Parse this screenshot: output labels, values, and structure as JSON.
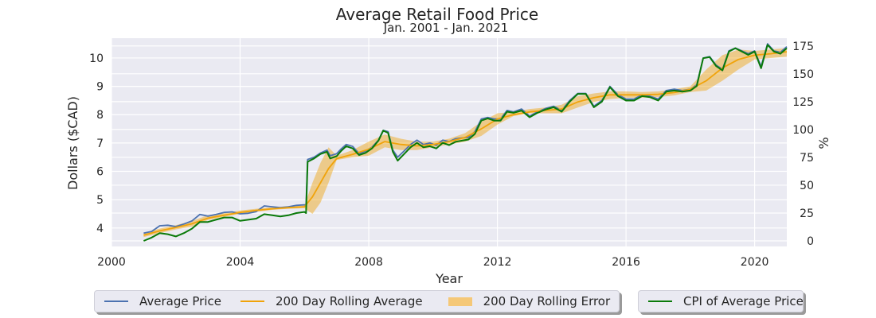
{
  "chart_data": {
    "type": "line",
    "title": "Average Retail Food Price",
    "subtitle": "Jan. 2001 - Jan. 2021",
    "xlabel": "Year",
    "ylabel": "Dollars ($CAD)",
    "y2label": "%",
    "xlim": [
      2000,
      2021
    ],
    "ylim": [
      3.35,
      10.7
    ],
    "y2lim": [
      -5,
      182
    ],
    "x_ticks": [
      2000,
      2004,
      2008,
      2012,
      2016,
      2020
    ],
    "y_ticks": [
      4,
      5,
      6,
      7,
      8,
      9,
      10
    ],
    "y2_ticks": [
      0,
      25,
      50,
      75,
      100,
      125,
      150,
      175
    ],
    "grid": true,
    "series": [
      {
        "name": "Average Price",
        "axis": "left",
        "color": "#4c72b0",
        "points": [
          [
            2001.0,
            3.82
          ],
          [
            2001.25,
            3.88
          ],
          [
            2001.5,
            4.08
          ],
          [
            2001.75,
            4.1
          ],
          [
            2002.0,
            4.05
          ],
          [
            2002.25,
            4.14
          ],
          [
            2002.5,
            4.25
          ],
          [
            2002.75,
            4.48
          ],
          [
            2003.0,
            4.42
          ],
          [
            2003.25,
            4.48
          ],
          [
            2003.5,
            4.55
          ],
          [
            2003.75,
            4.57
          ],
          [
            2004.0,
            4.5
          ],
          [
            2004.25,
            4.52
          ],
          [
            2004.5,
            4.58
          ],
          [
            2004.75,
            4.78
          ],
          [
            2005.0,
            4.75
          ],
          [
            2005.25,
            4.72
          ],
          [
            2005.5,
            4.75
          ],
          [
            2005.75,
            4.8
          ],
          [
            2006.0,
            4.82
          ],
          [
            2006.05,
            4.8
          ],
          [
            2006.1,
            6.42
          ],
          [
            2006.3,
            6.5
          ],
          [
            2006.5,
            6.65
          ],
          [
            2006.7,
            6.75
          ],
          [
            2006.8,
            6.55
          ],
          [
            2007.0,
            6.62
          ],
          [
            2007.15,
            6.8
          ],
          [
            2007.3,
            6.95
          ],
          [
            2007.5,
            6.88
          ],
          [
            2007.7,
            6.62
          ],
          [
            2007.9,
            6.72
          ],
          [
            2008.1,
            6.85
          ],
          [
            2008.3,
            7.1
          ],
          [
            2008.45,
            7.45
          ],
          [
            2008.6,
            7.4
          ],
          [
            2008.75,
            6.75
          ],
          [
            2008.9,
            6.5
          ],
          [
            2009.1,
            6.72
          ],
          [
            2009.3,
            6.95
          ],
          [
            2009.5,
            7.1
          ],
          [
            2009.7,
            6.95
          ],
          [
            2009.9,
            7.0
          ],
          [
            2010.1,
            6.92
          ],
          [
            2010.3,
            7.1
          ],
          [
            2010.5,
            7.05
          ],
          [
            2010.7,
            7.15
          ],
          [
            2010.9,
            7.18
          ],
          [
            2011.1,
            7.2
          ],
          [
            2011.3,
            7.4
          ],
          [
            2011.5,
            7.85
          ],
          [
            2011.7,
            7.9
          ],
          [
            2011.9,
            7.85
          ],
          [
            2012.1,
            7.85
          ],
          [
            2012.3,
            8.15
          ],
          [
            2012.5,
            8.1
          ],
          [
            2012.75,
            8.2
          ],
          [
            2013.0,
            7.95
          ],
          [
            2013.25,
            8.1
          ],
          [
            2013.5,
            8.22
          ],
          [
            2013.75,
            8.3
          ],
          [
            2014.0,
            8.15
          ],
          [
            2014.25,
            8.5
          ],
          [
            2014.5,
            8.75
          ],
          [
            2014.75,
            8.75
          ],
          [
            2015.0,
            8.3
          ],
          [
            2015.25,
            8.5
          ],
          [
            2015.5,
            9.0
          ],
          [
            2015.75,
            8.7
          ],
          [
            2016.0,
            8.55
          ],
          [
            2016.25,
            8.55
          ],
          [
            2016.5,
            8.7
          ],
          [
            2016.75,
            8.65
          ],
          [
            2017.0,
            8.55
          ],
          [
            2017.25,
            8.85
          ],
          [
            2017.5,
            8.9
          ],
          [
            2017.75,
            8.85
          ],
          [
            2018.0,
            8.9
          ],
          [
            2018.2,
            9.05
          ],
          [
            2018.4,
            10.0
          ],
          [
            2018.6,
            10.05
          ],
          [
            2018.8,
            9.75
          ],
          [
            2019.0,
            9.6
          ],
          [
            2019.2,
            10.25
          ],
          [
            2019.4,
            10.35
          ],
          [
            2019.6,
            10.25
          ],
          [
            2019.8,
            10.15
          ],
          [
            2020.0,
            10.25
          ],
          [
            2020.2,
            9.7
          ],
          [
            2020.4,
            10.5
          ],
          [
            2020.6,
            10.25
          ],
          [
            2020.8,
            10.2
          ],
          [
            2021.0,
            10.4
          ]
        ]
      },
      {
        "name": "200 Day Rolling Average",
        "axis": "left",
        "color": "#f0a30a",
        "points": [
          [
            2001.0,
            3.75
          ],
          [
            2001.5,
            3.9
          ],
          [
            2002.0,
            4.02
          ],
          [
            2002.5,
            4.15
          ],
          [
            2003.0,
            4.35
          ],
          [
            2003.5,
            4.45
          ],
          [
            2004.0,
            4.55
          ],
          [
            2004.5,
            4.62
          ],
          [
            2005.0,
            4.68
          ],
          [
            2005.5,
            4.72
          ],
          [
            2006.0,
            4.75
          ],
          [
            2006.25,
            5.1
          ],
          [
            2006.5,
            5.6
          ],
          [
            2006.75,
            6.1
          ],
          [
            2007.0,
            6.45
          ],
          [
            2007.5,
            6.6
          ],
          [
            2008.0,
            6.78
          ],
          [
            2008.5,
            7.05
          ],
          [
            2009.0,
            6.95
          ],
          [
            2009.5,
            6.9
          ],
          [
            2010.0,
            6.95
          ],
          [
            2010.5,
            7.05
          ],
          [
            2011.0,
            7.2
          ],
          [
            2011.5,
            7.5
          ],
          [
            2012.0,
            7.85
          ],
          [
            2012.5,
            8.0
          ],
          [
            2013.0,
            8.1
          ],
          [
            2013.5,
            8.15
          ],
          [
            2014.0,
            8.2
          ],
          [
            2014.5,
            8.45
          ],
          [
            2015.0,
            8.6
          ],
          [
            2015.5,
            8.7
          ],
          [
            2016.0,
            8.7
          ],
          [
            2016.5,
            8.7
          ],
          [
            2017.0,
            8.72
          ],
          [
            2017.5,
            8.78
          ],
          [
            2018.0,
            8.9
          ],
          [
            2018.5,
            9.2
          ],
          [
            2019.0,
            9.65
          ],
          [
            2019.5,
            9.95
          ],
          [
            2020.0,
            10.1
          ],
          [
            2020.5,
            10.15
          ],
          [
            2021.0,
            10.22
          ]
        ]
      },
      {
        "name": "CPI of Average Price",
        "axis": "right",
        "color": "#0a7a0a",
        "points": [
          [
            2001.0,
            0
          ],
          [
            2001.25,
            3
          ],
          [
            2001.5,
            7
          ],
          [
            2001.75,
            6
          ],
          [
            2002.0,
            4
          ],
          [
            2002.25,
            7
          ],
          [
            2002.5,
            11
          ],
          [
            2002.75,
            17
          ],
          [
            2003.0,
            17
          ],
          [
            2003.25,
            19
          ],
          [
            2003.5,
            21
          ],
          [
            2003.75,
            21
          ],
          [
            2004.0,
            18
          ],
          [
            2004.25,
            19
          ],
          [
            2004.5,
            20
          ],
          [
            2004.75,
            24
          ],
          [
            2005.0,
            23
          ],
          [
            2005.25,
            22
          ],
          [
            2005.5,
            23
          ],
          [
            2005.75,
            25
          ],
          [
            2006.0,
            26
          ],
          [
            2006.05,
            25
          ],
          [
            2006.1,
            71
          ],
          [
            2006.3,
            74
          ],
          [
            2006.5,
            78
          ],
          [
            2006.7,
            80
          ],
          [
            2006.8,
            74
          ],
          [
            2007.0,
            76
          ],
          [
            2007.15,
            81
          ],
          [
            2007.3,
            85
          ],
          [
            2007.5,
            83
          ],
          [
            2007.7,
            77
          ],
          [
            2007.9,
            79
          ],
          [
            2008.1,
            83
          ],
          [
            2008.3,
            90
          ],
          [
            2008.45,
            99
          ],
          [
            2008.6,
            97
          ],
          [
            2008.75,
            80
          ],
          [
            2008.9,
            72
          ],
          [
            2009.1,
            78
          ],
          [
            2009.3,
            84
          ],
          [
            2009.5,
            88
          ],
          [
            2009.7,
            84
          ],
          [
            2009.9,
            85
          ],
          [
            2010.1,
            83
          ],
          [
            2010.3,
            88
          ],
          [
            2010.5,
            86
          ],
          [
            2010.7,
            89
          ],
          [
            2010.9,
            90
          ],
          [
            2011.1,
            91
          ],
          [
            2011.3,
            96
          ],
          [
            2011.5,
            108
          ],
          [
            2011.7,
            110
          ],
          [
            2011.9,
            108
          ],
          [
            2012.1,
            108
          ],
          [
            2012.3,
            116
          ],
          [
            2012.5,
            115
          ],
          [
            2012.75,
            117
          ],
          [
            2013.0,
            111
          ],
          [
            2013.25,
            115
          ],
          [
            2013.5,
            118
          ],
          [
            2013.75,
            120
          ],
          [
            2014.0,
            116
          ],
          [
            2014.25,
            125
          ],
          [
            2014.5,
            132
          ],
          [
            2014.75,
            132
          ],
          [
            2015.0,
            120
          ],
          [
            2015.25,
            125
          ],
          [
            2015.5,
            138
          ],
          [
            2015.75,
            130
          ],
          [
            2016.0,
            126
          ],
          [
            2016.25,
            126
          ],
          [
            2016.5,
            130
          ],
          [
            2016.75,
            129
          ],
          [
            2017.0,
            126
          ],
          [
            2017.25,
            134
          ],
          [
            2017.5,
            135
          ],
          [
            2017.75,
            134
          ],
          [
            2018.0,
            135
          ],
          [
            2018.2,
            139
          ],
          [
            2018.4,
            164
          ],
          [
            2018.6,
            165
          ],
          [
            2018.8,
            157
          ],
          [
            2019.0,
            153
          ],
          [
            2019.2,
            170
          ],
          [
            2019.4,
            173
          ],
          [
            2019.6,
            170
          ],
          [
            2019.8,
            167
          ],
          [
            2020.0,
            170
          ],
          [
            2020.2,
            155
          ],
          [
            2020.4,
            176
          ],
          [
            2020.6,
            170
          ],
          [
            2020.8,
            168
          ],
          [
            2021.0,
            173
          ]
        ]
      }
    ],
    "error_band": {
      "name": "200 Day Rolling Error",
      "axis": "left",
      "color": "#f0a30a",
      "opacity": 0.45,
      "x": [
        2001.0,
        2001.5,
        2002.0,
        2002.5,
        2003.0,
        2003.5,
        2004.0,
        2004.5,
        2005.0,
        2005.5,
        2006.0,
        2006.25,
        2006.5,
        2006.75,
        2007.0,
        2007.5,
        2008.0,
        2008.5,
        2009.0,
        2009.5,
        2010.0,
        2010.5,
        2011.0,
        2011.5,
        2012.0,
        2012.5,
        2013.0,
        2013.5,
        2014.0,
        2014.5,
        2015.0,
        2015.5,
        2016.0,
        2016.5,
        2017.0,
        2017.5,
        2018.0,
        2018.5,
        2019.0,
        2019.5,
        2020.0,
        2020.5,
        2021.0
      ],
      "lower": [
        3.68,
        3.82,
        3.95,
        4.05,
        4.28,
        4.4,
        4.5,
        4.58,
        4.64,
        4.68,
        4.7,
        4.5,
        4.9,
        5.6,
        6.4,
        6.5,
        6.55,
        6.85,
        6.75,
        6.75,
        6.85,
        6.95,
        7.05,
        7.25,
        7.65,
        7.95,
        8.05,
        8.05,
        8.05,
        8.25,
        8.45,
        8.55,
        8.6,
        8.6,
        8.62,
        8.68,
        8.8,
        8.85,
        9.2,
        9.6,
        9.95,
        10.0,
        10.05
      ],
      "upper": [
        3.82,
        3.98,
        4.1,
        4.25,
        4.45,
        4.52,
        4.62,
        4.68,
        4.73,
        4.77,
        4.8,
        5.6,
        6.3,
        6.85,
        6.55,
        6.75,
        7.05,
        7.3,
        7.15,
        7.05,
        7.05,
        7.15,
        7.35,
        7.75,
        8.05,
        8.1,
        8.2,
        8.25,
        8.35,
        8.65,
        8.75,
        8.82,
        8.82,
        8.8,
        8.82,
        8.9,
        9.0,
        9.6,
        10.1,
        10.3,
        10.25,
        10.3,
        10.35
      ]
    }
  },
  "legend": {
    "main": [
      {
        "label": "Average Price",
        "kind": "line",
        "color": "#4c72b0"
      },
      {
        "label": "200 Day Rolling Average",
        "kind": "line",
        "color": "#f0a30a"
      },
      {
        "label": "200 Day Rolling Error",
        "kind": "band",
        "color": "#f5c878"
      }
    ],
    "cpi": {
      "label": "CPI of Average Price",
      "kind": "line",
      "color": "#0a7a0a"
    }
  }
}
